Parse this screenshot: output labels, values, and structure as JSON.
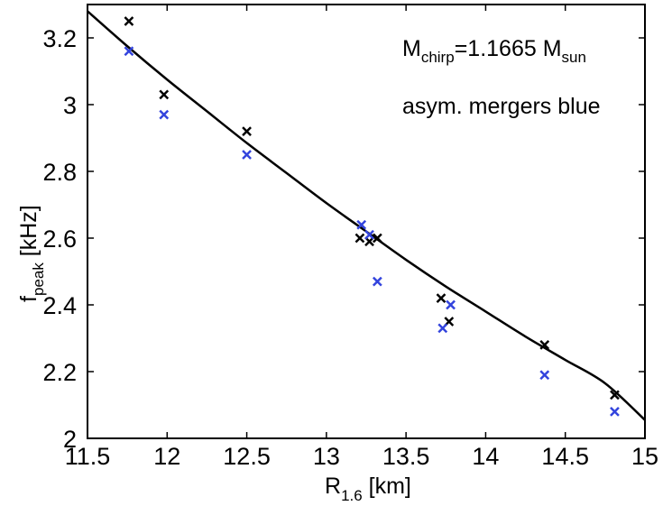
{
  "chart_data": {
    "type": "scatter",
    "xlim": [
      11.5,
      15
    ],
    "ylim": [
      2.0,
      3.3
    ],
    "xticks": [
      "11.5",
      "12",
      "12.5",
      "13",
      "13.5",
      "14",
      "14.5",
      "15"
    ],
    "yticks": [
      "2",
      "2.2",
      "2.4",
      "2.6",
      "2.8",
      "3",
      "3.2"
    ],
    "xticks_values": [
      11.5,
      12,
      12.5,
      13,
      13.5,
      14,
      14.5,
      15
    ],
    "yticks_values": [
      2.0,
      2.2,
      2.4,
      2.6,
      2.8,
      3.0,
      3.2
    ],
    "xlabel": {
      "main": "R",
      "sub": "1.6",
      "unit": " [km]"
    },
    "ylabel": {
      "main": "f",
      "sub": "peak",
      "unit": " [kHz]"
    },
    "annotations": {
      "line1_main": "M",
      "line1_sub": "chirp",
      "line1_mid": "=1.1665 M",
      "line1_sub2": "sun",
      "line2": "asym. mergers blue"
    },
    "grid": false,
    "marker": "x",
    "series": [
      {
        "color": "#000000",
        "x": [
          11.76,
          11.98,
          12.5,
          13.21,
          13.27,
          13.32,
          13.72,
          13.77,
          14.37,
          14.81
        ],
        "y": [
          3.25,
          3.03,
          2.92,
          2.6,
          2.59,
          2.6,
          2.42,
          2.35,
          2.28,
          2.13
        ]
      },
      {
        "color": "#3344dd",
        "x": [
          11.76,
          11.98,
          12.5,
          13.22,
          13.27,
          13.32,
          13.73,
          13.78,
          14.37,
          14.81
        ],
        "y": [
          3.16,
          2.97,
          2.85,
          2.64,
          2.61,
          2.47,
          2.33,
          2.4,
          2.19,
          2.08
        ]
      }
    ],
    "fit_curve": {
      "color": "#000000",
      "x": [
        11.5,
        11.75,
        12.0,
        12.25,
        12.5,
        12.75,
        13.0,
        13.25,
        13.5,
        13.75,
        14.0,
        14.25,
        14.5,
        14.75,
        15.0
      ],
      "y": [
        3.28,
        3.175,
        3.075,
        2.98,
        2.885,
        2.795,
        2.705,
        2.62,
        2.535,
        2.455,
        2.38,
        2.305,
        2.235,
        2.165,
        2.055
      ]
    }
  }
}
